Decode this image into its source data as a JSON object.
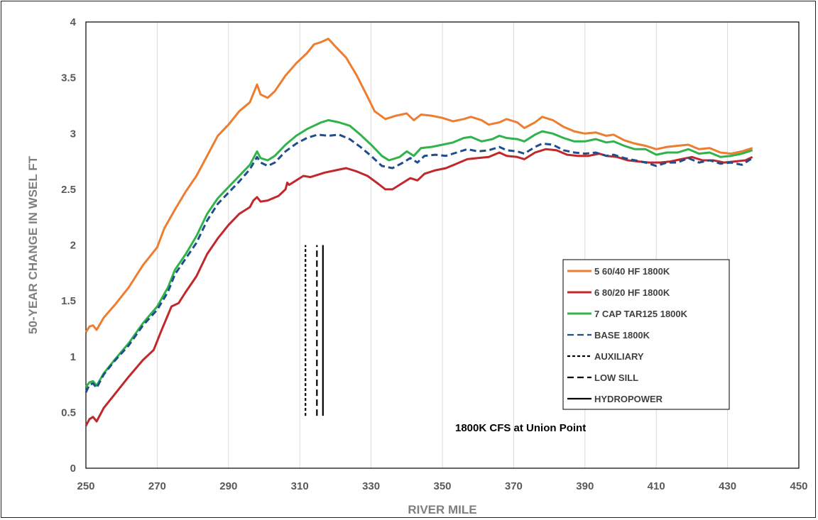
{
  "chart_data": {
    "type": "line",
    "title": "",
    "xlabel": "RIVER MILE",
    "ylabel": "50-YEAR CHANGE IN WSEL  FT",
    "xlim": [
      250,
      450
    ],
    "ylim": [
      0,
      4
    ],
    "x_ticks": [
      "250",
      "270",
      "290",
      "310",
      "330",
      "350",
      "370",
      "390",
      "410",
      "430",
      "450"
    ],
    "y_ticks": [
      "0",
      "0.5",
      "1",
      "1.5",
      "2",
      "2.5",
      "3",
      "3.5",
      "4"
    ],
    "grid": "vertical",
    "legend_position": "right",
    "annotation": "1800K CFS at Union Point",
    "series": [
      {
        "name": "5 60/40 HF 1800K",
        "color": "#ed7d31",
        "style": "solid",
        "points": [
          [
            250,
            1.22
          ],
          [
            251,
            1.27
          ],
          [
            252,
            1.28
          ],
          [
            253,
            1.24
          ],
          [
            255,
            1.35
          ],
          [
            258,
            1.46
          ],
          [
            262,
            1.62
          ],
          [
            266,
            1.82
          ],
          [
            270,
            1.98
          ],
          [
            272,
            2.15
          ],
          [
            275,
            2.32
          ],
          [
            278,
            2.48
          ],
          [
            281,
            2.62
          ],
          [
            284,
            2.8
          ],
          [
            287,
            2.98
          ],
          [
            290,
            3.08
          ],
          [
            293,
            3.2
          ],
          [
            296,
            3.28
          ],
          [
            298,
            3.44
          ],
          [
            299,
            3.35
          ],
          [
            301,
            3.32
          ],
          [
            303,
            3.38
          ],
          [
            306,
            3.52
          ],
          [
            309,
            3.63
          ],
          [
            312,
            3.72
          ],
          [
            314,
            3.8
          ],
          [
            316,
            3.82
          ],
          [
            318,
            3.85
          ],
          [
            320,
            3.78
          ],
          [
            323,
            3.68
          ],
          [
            326,
            3.52
          ],
          [
            329,
            3.33
          ],
          [
            331,
            3.2
          ],
          [
            334,
            3.13
          ],
          [
            337,
            3.16
          ],
          [
            340,
            3.18
          ],
          [
            342,
            3.12
          ],
          [
            344,
            3.17
          ],
          [
            347,
            3.16
          ],
          [
            350,
            3.14
          ],
          [
            353,
            3.11
          ],
          [
            356,
            3.13
          ],
          [
            358,
            3.15
          ],
          [
            361,
            3.12
          ],
          [
            363,
            3.08
          ],
          [
            366,
            3.1
          ],
          [
            368,
            3.13
          ],
          [
            371,
            3.1
          ],
          [
            373,
            3.05
          ],
          [
            376,
            3.1
          ],
          [
            378,
            3.15
          ],
          [
            381,
            3.12
          ],
          [
            384,
            3.06
          ],
          [
            387,
            3.02
          ],
          [
            390,
            3.0
          ],
          [
            393,
            3.01
          ],
          [
            396,
            2.98
          ],
          [
            398,
            2.99
          ],
          [
            401,
            2.94
          ],
          [
            404,
            2.91
          ],
          [
            407,
            2.89
          ],
          [
            410,
            2.86
          ],
          [
            413,
            2.88
          ],
          [
            416,
            2.89
          ],
          [
            419,
            2.9
          ],
          [
            422,
            2.86
          ],
          [
            425,
            2.87
          ],
          [
            428,
            2.83
          ],
          [
            431,
            2.82
          ],
          [
            434,
            2.84
          ],
          [
            437,
            2.87
          ]
        ]
      },
      {
        "name": "6 80/20 HF 1800K",
        "color": "#c0282b",
        "style": "solid",
        "points": [
          [
            250,
            0.38
          ],
          [
            251,
            0.44
          ],
          [
            252,
            0.46
          ],
          [
            253,
            0.42
          ],
          [
            255,
            0.54
          ],
          [
            258,
            0.66
          ],
          [
            262,
            0.82
          ],
          [
            266,
            0.97
          ],
          [
            269,
            1.06
          ],
          [
            271,
            1.22
          ],
          [
            274,
            1.45
          ],
          [
            276,
            1.48
          ],
          [
            278,
            1.58
          ],
          [
            281,
            1.72
          ],
          [
            284,
            1.92
          ],
          [
            287,
            2.06
          ],
          [
            290,
            2.18
          ],
          [
            293,
            2.28
          ],
          [
            296,
            2.34
          ],
          [
            297,
            2.4
          ],
          [
            298,
            2.43
          ],
          [
            299,
            2.39
          ],
          [
            301,
            2.4
          ],
          [
            304,
            2.44
          ],
          [
            306,
            2.5
          ],
          [
            306.5,
            2.56
          ],
          [
            307,
            2.54
          ],
          [
            309,
            2.58
          ],
          [
            311,
            2.62
          ],
          [
            313,
            2.61
          ],
          [
            315,
            2.63
          ],
          [
            317,
            2.65
          ],
          [
            320,
            2.67
          ],
          [
            323,
            2.69
          ],
          [
            326,
            2.66
          ],
          [
            329,
            2.62
          ],
          [
            332,
            2.55
          ],
          [
            334,
            2.5
          ],
          [
            336,
            2.5
          ],
          [
            339,
            2.56
          ],
          [
            341,
            2.6
          ],
          [
            343,
            2.58
          ],
          [
            345,
            2.64
          ],
          [
            348,
            2.67
          ],
          [
            351,
            2.69
          ],
          [
            354,
            2.73
          ],
          [
            357,
            2.77
          ],
          [
            360,
            2.78
          ],
          [
            363,
            2.79
          ],
          [
            366,
            2.83
          ],
          [
            368,
            2.8
          ],
          [
            371,
            2.79
          ],
          [
            373,
            2.77
          ],
          [
            376,
            2.83
          ],
          [
            379,
            2.86
          ],
          [
            382,
            2.85
          ],
          [
            385,
            2.81
          ],
          [
            388,
            2.8
          ],
          [
            391,
            2.8
          ],
          [
            394,
            2.82
          ],
          [
            396,
            2.8
          ],
          [
            399,
            2.79
          ],
          [
            402,
            2.76
          ],
          [
            405,
            2.75
          ],
          [
            408,
            2.74
          ],
          [
            411,
            2.74
          ],
          [
            414,
            2.75
          ],
          [
            417,
            2.77
          ],
          [
            420,
            2.79
          ],
          [
            423,
            2.76
          ],
          [
            426,
            2.76
          ],
          [
            429,
            2.74
          ],
          [
            432,
            2.75
          ],
          [
            435,
            2.76
          ],
          [
            437,
            2.79
          ]
        ]
      },
      {
        "name": "7  CAP TAR125 1800K",
        "color": "#2fb34a",
        "style": "solid",
        "points": [
          [
            250,
            0.73
          ],
          [
            251,
            0.77
          ],
          [
            252,
            0.78
          ],
          [
            253,
            0.74
          ],
          [
            255,
            0.85
          ],
          [
            258,
            0.97
          ],
          [
            262,
            1.12
          ],
          [
            266,
            1.3
          ],
          [
            270,
            1.45
          ],
          [
            273,
            1.62
          ],
          [
            275,
            1.78
          ],
          [
            278,
            1.92
          ],
          [
            281,
            2.08
          ],
          [
            284,
            2.28
          ],
          [
            287,
            2.42
          ],
          [
            290,
            2.52
          ],
          [
            293,
            2.62
          ],
          [
            296,
            2.72
          ],
          [
            298,
            2.84
          ],
          [
            299,
            2.78
          ],
          [
            301,
            2.76
          ],
          [
            303,
            2.8
          ],
          [
            306,
            2.9
          ],
          [
            309,
            2.98
          ],
          [
            312,
            3.04
          ],
          [
            314,
            3.07
          ],
          [
            316,
            3.1
          ],
          [
            318,
            3.12
          ],
          [
            321,
            3.1
          ],
          [
            324,
            3.07
          ],
          [
            327,
            2.99
          ],
          [
            330,
            2.9
          ],
          [
            333,
            2.8
          ],
          [
            335,
            2.76
          ],
          [
            338,
            2.79
          ],
          [
            340,
            2.84
          ],
          [
            342,
            2.8
          ],
          [
            344,
            2.87
          ],
          [
            347,
            2.88
          ],
          [
            350,
            2.9
          ],
          [
            353,
            2.92
          ],
          [
            356,
            2.96
          ],
          [
            358,
            2.97
          ],
          [
            361,
            2.93
          ],
          [
            364,
            2.95
          ],
          [
            366,
            2.98
          ],
          [
            368,
            2.96
          ],
          [
            371,
            2.95
          ],
          [
            373,
            2.93
          ],
          [
            376,
            2.99
          ],
          [
            378,
            3.02
          ],
          [
            381,
            3.0
          ],
          [
            384,
            2.96
          ],
          [
            387,
            2.93
          ],
          [
            390,
            2.93
          ],
          [
            393,
            2.95
          ],
          [
            396,
            2.92
          ],
          [
            398,
            2.93
          ],
          [
            401,
            2.89
          ],
          [
            404,
            2.86
          ],
          [
            407,
            2.86
          ],
          [
            410,
            2.81
          ],
          [
            413,
            2.83
          ],
          [
            416,
            2.83
          ],
          [
            419,
            2.86
          ],
          [
            422,
            2.82
          ],
          [
            425,
            2.83
          ],
          [
            428,
            2.79
          ],
          [
            431,
            2.8
          ],
          [
            434,
            2.82
          ],
          [
            437,
            2.85
          ]
        ]
      },
      {
        "name": "BASE 1800K",
        "color": "#1f4e8f",
        "style": "dashed",
        "points": [
          [
            250,
            0.68
          ],
          [
            251,
            0.75
          ],
          [
            252,
            0.76
          ],
          [
            253,
            0.72
          ],
          [
            255,
            0.84
          ],
          [
            258,
            0.96
          ],
          [
            262,
            1.1
          ],
          [
            266,
            1.28
          ],
          [
            270,
            1.42
          ],
          [
            273,
            1.58
          ],
          [
            275,
            1.74
          ],
          [
            278,
            1.88
          ],
          [
            281,
            2.02
          ],
          [
            284,
            2.22
          ],
          [
            287,
            2.37
          ],
          [
            290,
            2.47
          ],
          [
            293,
            2.57
          ],
          [
            296,
            2.68
          ],
          [
            298,
            2.79
          ],
          [
            299,
            2.74
          ],
          [
            301,
            2.71
          ],
          [
            303,
            2.74
          ],
          [
            306,
            2.84
          ],
          [
            309,
            2.91
          ],
          [
            312,
            2.96
          ],
          [
            315,
            2.99
          ],
          [
            318,
            2.98
          ],
          [
            321,
            2.99
          ],
          [
            324,
            2.95
          ],
          [
            327,
            2.88
          ],
          [
            330,
            2.8
          ],
          [
            333,
            2.71
          ],
          [
            336,
            2.69
          ],
          [
            339,
            2.74
          ],
          [
            341,
            2.78
          ],
          [
            343,
            2.74
          ],
          [
            345,
            2.8
          ],
          [
            348,
            2.81
          ],
          [
            351,
            2.8
          ],
          [
            354,
            2.83
          ],
          [
            357,
            2.86
          ],
          [
            360,
            2.84
          ],
          [
            363,
            2.85
          ],
          [
            366,
            2.88
          ],
          [
            368,
            2.85
          ],
          [
            371,
            2.84
          ],
          [
            373,
            2.82
          ],
          [
            376,
            2.88
          ],
          [
            378,
            2.91
          ],
          [
            381,
            2.9
          ],
          [
            384,
            2.85
          ],
          [
            387,
            2.83
          ],
          [
            390,
            2.82
          ],
          [
            393,
            2.83
          ],
          [
            396,
            2.8
          ],
          [
            398,
            2.81
          ],
          [
            401,
            2.78
          ],
          [
            404,
            2.76
          ],
          [
            407,
            2.74
          ],
          [
            410,
            2.71
          ],
          [
            413,
            2.74
          ],
          [
            416,
            2.74
          ],
          [
            419,
            2.78
          ],
          [
            422,
            2.74
          ],
          [
            425,
            2.76
          ],
          [
            428,
            2.73
          ],
          [
            431,
            2.74
          ],
          [
            434,
            2.72
          ],
          [
            437,
            2.78
          ]
        ]
      },
      {
        "name": "AUXILIARY",
        "color": "#000000",
        "style": "dotted",
        "points": [
          [
            311.6,
            0.47
          ],
          [
            311.6,
            2.0
          ]
        ]
      },
      {
        "name": "LOW SILL",
        "color": "#000000",
        "style": "dashed",
        "points": [
          [
            314.8,
            0.47
          ],
          [
            314.8,
            2.0
          ]
        ]
      },
      {
        "name": "HYDROPOWER",
        "color": "#000000",
        "style": "solid",
        "points": [
          [
            316.5,
            0.47
          ],
          [
            316.5,
            2.0
          ]
        ]
      }
    ]
  }
}
